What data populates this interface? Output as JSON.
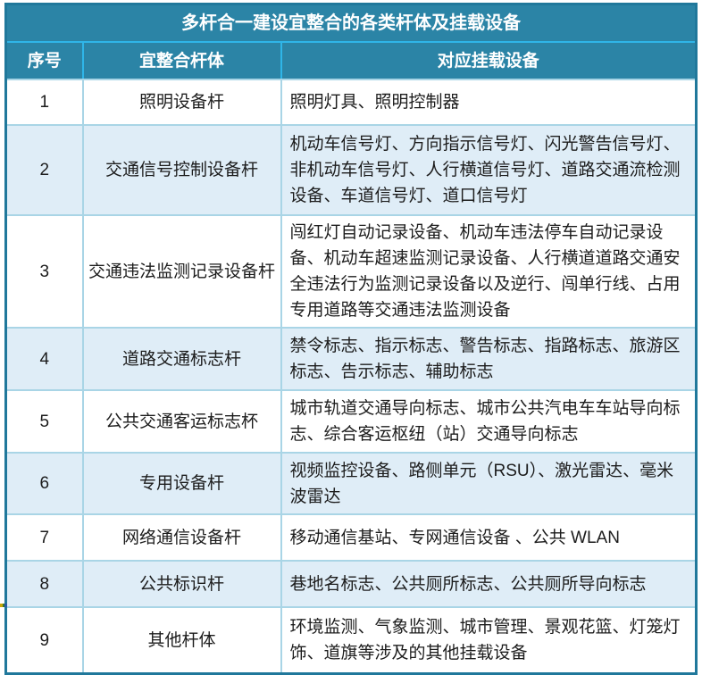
{
  "table": {
    "title": "多杆合一建设宜整合的各类杆体及挂载设备",
    "columns": {
      "no": "序号",
      "pole": "宜整合杆体",
      "devices": "对应挂载设备"
    },
    "rows": [
      {
        "no": "1",
        "pole": "照明设备杆",
        "devices": "照明灯具、照明控制器"
      },
      {
        "no": "2",
        "pole": "交通信号控制设备杆",
        "devices": "机动车信号灯、方向指示信号灯、闪光警告信号灯、非机动车信号灯、人行横道信号灯、道路交通流检测设备、车道信号灯、道口信号灯"
      },
      {
        "no": "3",
        "pole": "交通违法监测记录设备杆",
        "devices": "闯红灯自动记录设备、机动车违法停车自动记录设备、机动车超速监测记录设备、人行横道道路交通安全违法行为监测记录设备以及逆行、闯单行线、占用专用道路等交通违法监测设备"
      },
      {
        "no": "4",
        "pole": "道路交通标志杆",
        "devices": "禁令标志、指示标志、警告标志、指路标志、旅游区标志、告示标志、辅助标志"
      },
      {
        "no": "5",
        "pole": "公共交通客运标志杯",
        "devices": "城市轨道交通导向标志、城市公共汽电车车站导向标志、综合客运枢纽（站）交通导向标志"
      },
      {
        "no": "6",
        "pole": "专用设备杆",
        "devices": "视频监控设备、路侧单元（RSU）、激光雷达、毫米波雷达"
      },
      {
        "no": "7",
        "pole": "网络通信设备杆",
        "devices": "移动通信基站、专网通信设备 、公共 WLAN"
      },
      {
        "no": "8",
        "pole": "公共标识杆",
        "devices": "巷地名标志、公共厕所标志、公共厕所导向标志"
      },
      {
        "no": "9",
        "pole": "其他杆体",
        "devices": "环境监测、气象监测、城市管理、景观花篮、灯笼灯饰、道旗等涉及的其他挂载设备"
      }
    ]
  },
  "colors": {
    "header_bg": "#2b84a6",
    "outer_border": "#20789b",
    "header_divider": "#2fb5e8",
    "body_border": "#a9d5e6",
    "alt_row_bg": "#dfedf7",
    "row_bg": "#ffffff",
    "header_text": "#ffffff",
    "body_text": "#1c1c1c"
  }
}
